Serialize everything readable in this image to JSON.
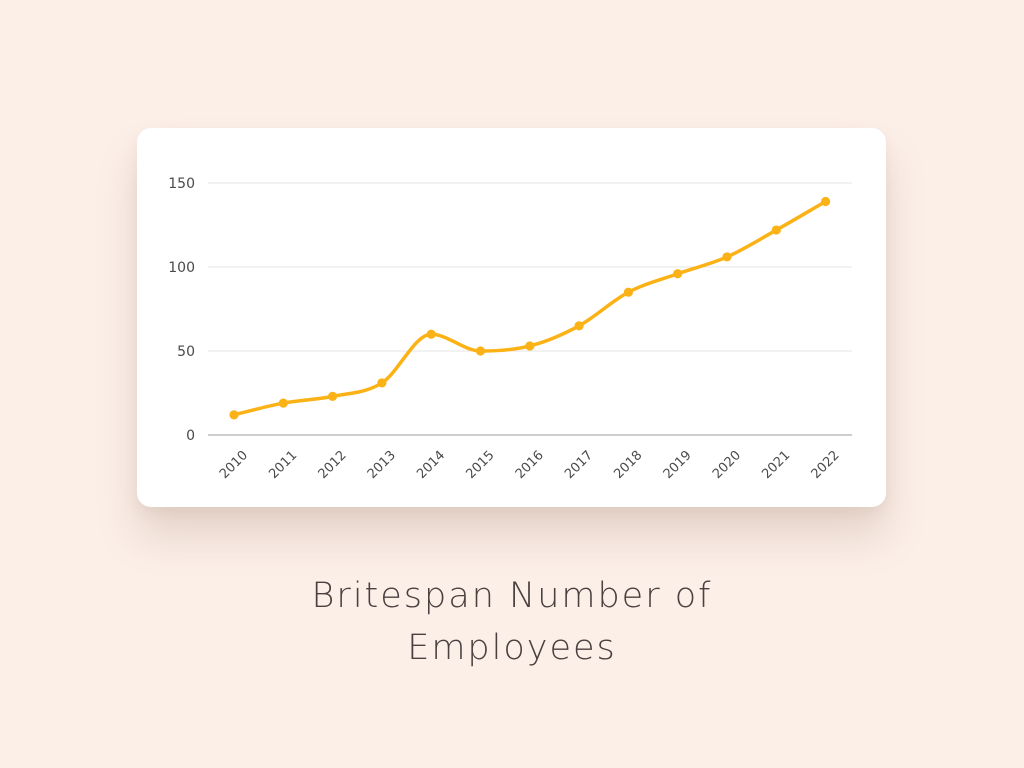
{
  "colors": {
    "background": "#fcefe8",
    "card": "#ffffff",
    "line": "#fbb216",
    "grid": "#e6e6e6",
    "axis": "#bdbdbd",
    "tick_text": "#4a4a4a",
    "caption_text": "#4a4040"
  },
  "caption": {
    "line1": "Britespan Number of",
    "line2": "Employees"
  },
  "chart_data": {
    "type": "line",
    "title": "Britespan Number of Employees",
    "xlabel": "",
    "ylabel": "",
    "categories": [
      "2010",
      "2011",
      "2012",
      "2013",
      "2014",
      "2015",
      "2016",
      "2017",
      "2018",
      "2019",
      "2020",
      "2021",
      "2022"
    ],
    "series": [
      {
        "values": [
          12,
          19,
          23,
          31,
          60,
          50,
          53,
          65,
          85,
          96,
          106,
          122,
          139
        ]
      }
    ],
    "ylim": [
      0,
      150
    ],
    "yticks": [
      0,
      50,
      100,
      150
    ],
    "grid": true,
    "legend": "none",
    "smooth": true
  }
}
